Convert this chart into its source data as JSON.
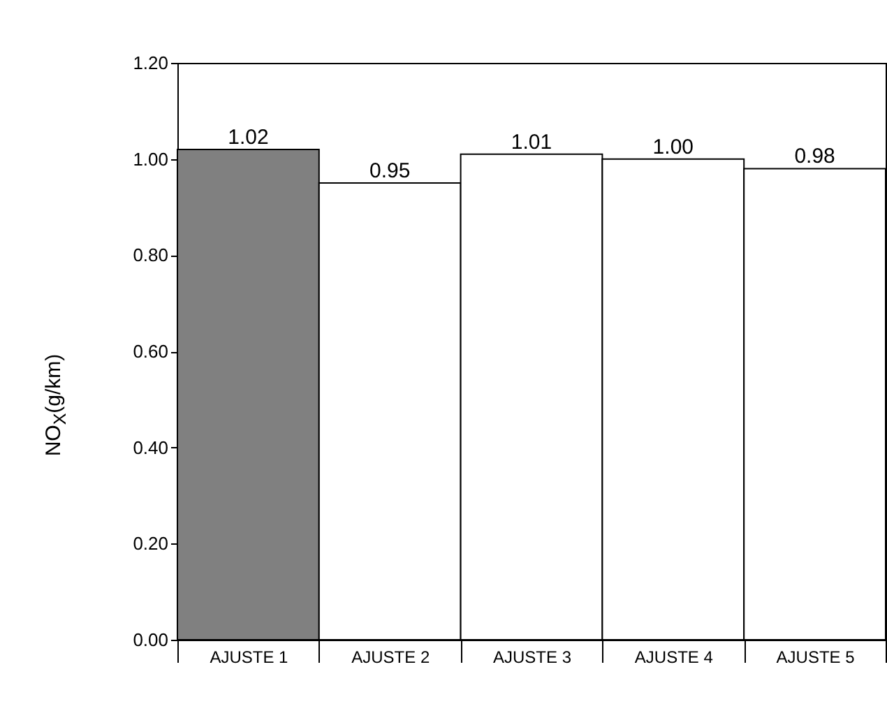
{
  "chart_data": {
    "type": "bar",
    "ylabel": "NO$_{X}$(g/km)",
    "categories": [
      "AJUSTE 1",
      "AJUSTE 2",
      "AJUSTE 3",
      "AJUSTE 4",
      "AJUSTE 5"
    ],
    "values": [
      1.02,
      0.95,
      1.01,
      1.0,
      0.98
    ],
    "value_labels": [
      "1.02",
      "0.95",
      "1.01",
      "1.00",
      "0.98"
    ],
    "colors": [
      "#808080",
      "#ffffff",
      "#ffffff",
      "#ffffff",
      "#ffffff"
    ],
    "ylim": [
      0,
      1.2
    ],
    "yticks": [
      {
        "value": 0,
        "label": "0.00"
      },
      {
        "value": 0.2,
        "label": "0.20"
      },
      {
        "value": 0.4,
        "label": "0.40"
      },
      {
        "value": 0.6,
        "label": "0.60"
      },
      {
        "value": 0.8,
        "label": "0.80"
      },
      {
        "value": 1,
        "label": "1.00"
      },
      {
        "value": 1.2,
        "label": "1.20"
      }
    ],
    "grid": false
  }
}
